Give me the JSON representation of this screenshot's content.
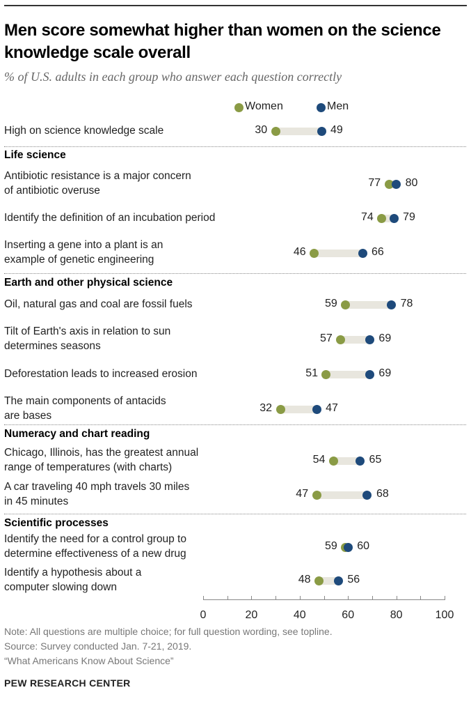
{
  "title": "Men score somewhat higher than women on the science knowledge scale overall",
  "subtitle": "% of U.S. adults in each group who answer each question correctly",
  "notes": [
    "Note: All questions are multiple choice; for full question wording, see topline.",
    "Source: Survey conducted Jan. 7-21, 2019.",
    "“What Americans Know About Science”"
  ],
  "brand": "PEW RESEARCH CENTER",
  "colors": {
    "women": "#8A9B45",
    "men": "#1E4A7B",
    "bar": "#E8E6DE"
  },
  "chart_data": {
    "type": "dot",
    "xlim": [
      0,
      100
    ],
    "ticks": [
      0,
      20,
      40,
      60,
      80,
      100
    ],
    "legend": {
      "placement": "top",
      "women": "Women",
      "men": "Men"
    },
    "groups": [
      {
        "name": "",
        "items": [
          {
            "label": "High on science knowledge scale",
            "women": 30,
            "men": 49
          }
        ]
      },
      {
        "name": "Life science",
        "items": [
          {
            "label": "Antibiotic resistance is a major concern\nof antibiotic overuse",
            "women": 77,
            "men": 80
          },
          {
            "label": "Identify the definition of an incubation period",
            "women": 74,
            "men": 79
          },
          {
            "label": "Inserting a gene into a plant is an\nexample of genetic engineering",
            "women": 46,
            "men": 66
          }
        ]
      },
      {
        "name": "Earth and other physical science",
        "items": [
          {
            "label": "Oil, natural gas and coal are fossil fuels",
            "women": 59,
            "men": 78
          },
          {
            "label": "Tilt of Earth's axis in relation to sun\ndetermines seasons",
            "women": 57,
            "men": 69
          },
          {
            "label": "Deforestation leads to increased erosion",
            "women": 51,
            "men": 69
          },
          {
            "label": "The main components of antacids\nare bases",
            "women": 32,
            "men": 47
          }
        ]
      },
      {
        "name": "Numeracy and chart reading",
        "items": [
          {
            "label": "Chicago, Illinois, has the greatest annual\nrange of temperatures (with charts)",
            "women": 54,
            "men": 65
          },
          {
            "label": "A car traveling 40 mph travels 30 miles\nin 45 minutes",
            "women": 47,
            "men": 68
          }
        ]
      },
      {
        "name": "Scientific processes",
        "items": [
          {
            "label": "Identify the need for a control group to\ndetermine effectiveness of a new drug",
            "women": 59,
            "men": 60
          },
          {
            "label": "Identify a hypothesis about a\ncomputer slowing down",
            "women": 48,
            "men": 56
          }
        ]
      }
    ]
  }
}
